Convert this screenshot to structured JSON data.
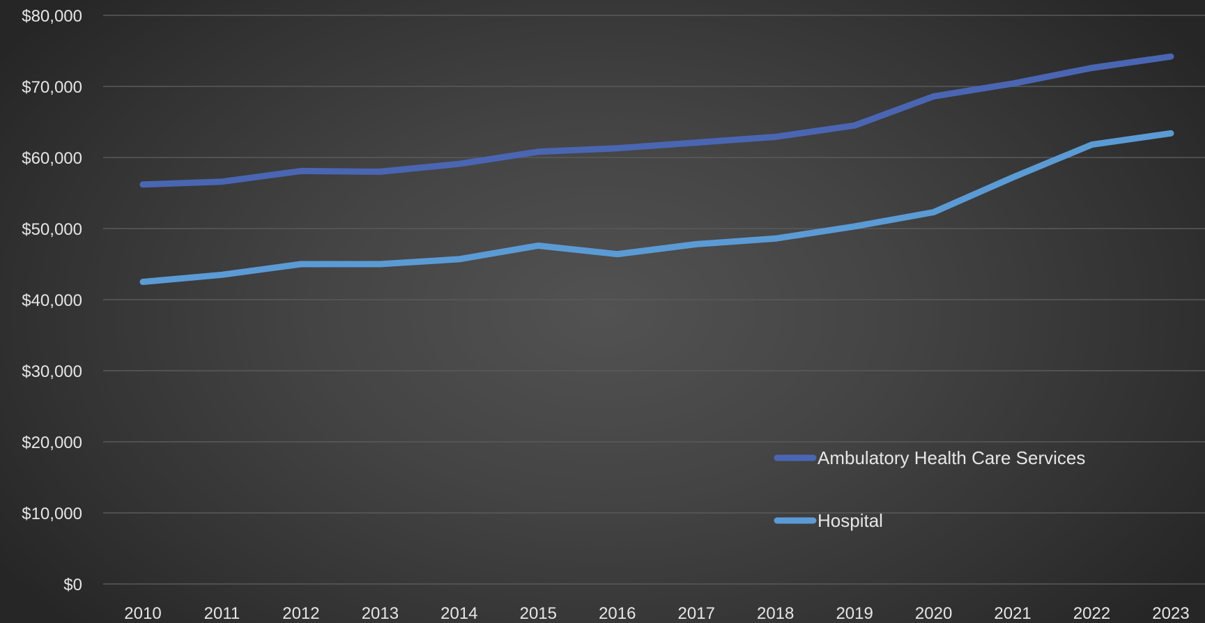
{
  "chart_data": {
    "type": "line",
    "title": "",
    "xlabel": "",
    "ylabel": "",
    "x": [
      "2010",
      "2011",
      "2012",
      "2013",
      "2014",
      "2015",
      "2016",
      "2017",
      "2018",
      "2019",
      "2020",
      "2021",
      "2022",
      "2023"
    ],
    "ylim": [
      0,
      80000
    ],
    "yticks": [
      0,
      10000,
      20000,
      30000,
      40000,
      50000,
      60000,
      70000,
      80000
    ],
    "ytick_labels": [
      "$0",
      "$10,000",
      "$20,000",
      "$30,000",
      "$40,000",
      "$50,000",
      "$60,000",
      "$70,000",
      "$80,000"
    ],
    "grid": true,
    "legend_position": "lower-right",
    "series": [
      {
        "name": "Ambulatory Health Care Services",
        "color": "#4a66b3",
        "values": [
          56200,
          56600,
          58100,
          58000,
          59100,
          60800,
          61300,
          62100,
          62900,
          64500,
          68600,
          70400,
          72600,
          74200
        ]
      },
      {
        "name": "Hospital",
        "color": "#5b9bd5",
        "values": [
          42500,
          43500,
          45000,
          45000,
          45700,
          47600,
          46400,
          47800,
          48600,
          50300,
          52300,
          57200,
          61800,
          63400
        ]
      }
    ]
  }
}
